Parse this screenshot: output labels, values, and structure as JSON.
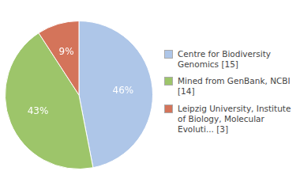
{
  "chart_data": {
    "type": "pie",
    "categories": [
      "Centre for Biodiversity\nGenomics [15]",
      "Mined from GenBank, NCBI [14]",
      "Leipzig University, Institute\nof Biology, Molecular\nEvoluti... [3]"
    ],
    "values": [
      46,
      43,
      9
    ],
    "value_labels": [
      "46%",
      "43%",
      "9%"
    ],
    "colors": [
      "#aec6e8",
      "#9dc56a",
      "#d4745a"
    ],
    "data_labels": true,
    "legend": "right"
  }
}
